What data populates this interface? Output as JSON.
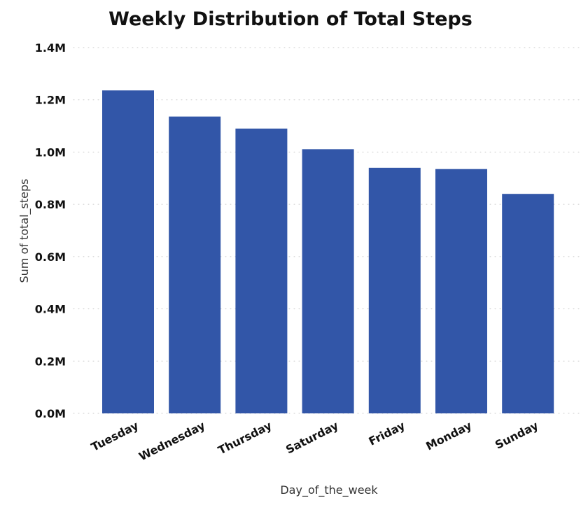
{
  "chart_data": {
    "type": "bar",
    "title": "Weekly Distribution of Total Steps",
    "xlabel": "Day_of_the_week",
    "ylabel": "Sum of total_steps",
    "categories": [
      "Tuesday",
      "Wednesday",
      "Thursday",
      "Saturday",
      "Friday",
      "Monday",
      "Sunday"
    ],
    "values": [
      1236000,
      1136000,
      1090000,
      1011000,
      940000,
      935000,
      840000
    ],
    "ylim": [
      0,
      1400000
    ],
    "yticks": [
      0,
      200000,
      400000,
      600000,
      800000,
      1000000,
      1200000,
      1400000
    ],
    "ytick_labels": [
      "0.0M",
      "0.2M",
      "0.4M",
      "0.6M",
      "0.8M",
      "1.0M",
      "1.2M",
      "1.4M"
    ],
    "grid": true,
    "legend": "none",
    "bar_color": "#3256A8"
  }
}
